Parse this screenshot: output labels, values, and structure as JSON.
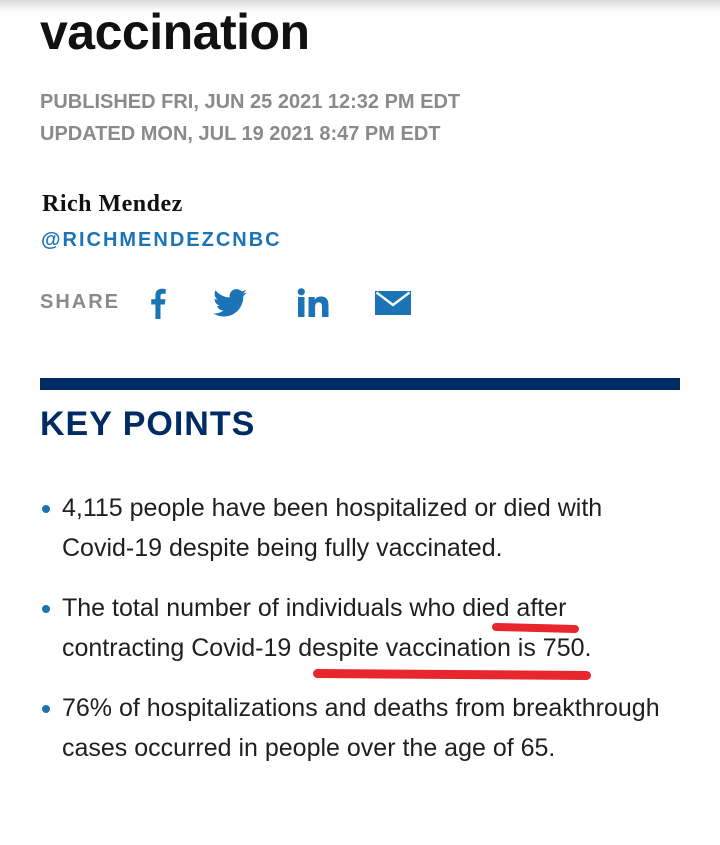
{
  "article": {
    "headline": "vaccination",
    "published": "PUBLISHED FRI, JUN 25 2021 12:32 PM EDT",
    "updated": "UPDATED MON, JUL 19 2021 8:47 PM EDT",
    "author": "Rich Mendez",
    "author_handle": "@RICHMENDEZCNBC"
  },
  "share": {
    "label": "SHARE",
    "icons": [
      "facebook-icon",
      "twitter-icon",
      "linkedin-icon",
      "email-icon"
    ]
  },
  "key_points": {
    "title": "KEY POINTS",
    "items": [
      "4,115 people have been hospitalized or died with Covid-19 despite being fully vaccinated.",
      "The total number of individuals who died after contracting Covid-19 despite vaccination is 750.",
      "76% of hospitalizations and deaths from breakthrough cases occurred in people over the age of 65."
    ]
  },
  "colors": {
    "navy": "#012b64",
    "link_blue": "#1b74b5",
    "meta_gray": "#8a8a8a",
    "annotation_red": "#e8262e"
  }
}
